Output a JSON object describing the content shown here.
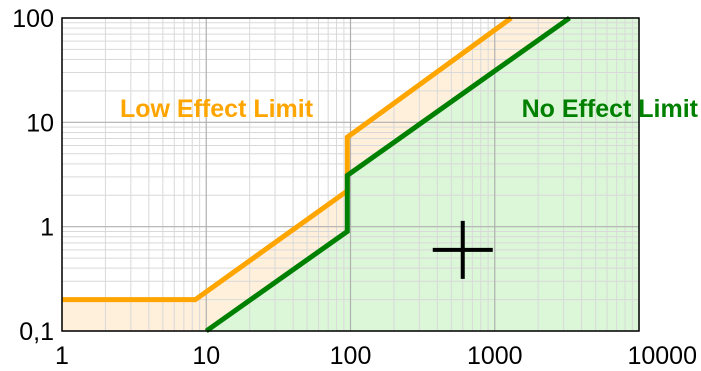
{
  "chart_data": {
    "type": "line",
    "title": "",
    "xlabel": "",
    "ylabel": "",
    "x_scale": "log",
    "y_scale": "log",
    "xlim": [
      1,
      10000
    ],
    "ylim": [
      0.1,
      100
    ],
    "grid": true,
    "x_ticks": [
      {
        "value": 1,
        "label": "1"
      },
      {
        "value": 10,
        "label": "10"
      },
      {
        "value": 100,
        "label": "100"
      },
      {
        "value": 1000,
        "label": "1000"
      },
      {
        "value": 10000,
        "label": "10000"
      }
    ],
    "y_ticks": [
      {
        "value": 0.1,
        "label": "0,1"
      },
      {
        "value": 1,
        "label": "1"
      },
      {
        "value": 10,
        "label": "10"
      },
      {
        "value": 100,
        "label": "100"
      }
    ],
    "series": [
      {
        "name": "Low Effect Limit",
        "color": "#ffa500",
        "points": [
          [
            1,
            0.2
          ],
          [
            8.4,
            0.2
          ],
          [
            95,
            2.2
          ],
          [
            95,
            7.2
          ],
          [
            1300,
            100
          ]
        ]
      },
      {
        "name": "No Effect Limit",
        "color": "#008000",
        "points": [
          [
            10,
            0.1
          ],
          [
            95,
            0.9
          ],
          [
            95,
            3.1
          ],
          [
            3300,
            100
          ]
        ]
      }
    ],
    "marker": {
      "symbol": "+",
      "x": 600,
      "y": 0.6,
      "color": "#000000"
    },
    "colors": {
      "grid": "#d9d9d9",
      "band_fill": "#fff0dc",
      "safe_fill": "#dbf7d8",
      "frame": "#000000"
    }
  }
}
